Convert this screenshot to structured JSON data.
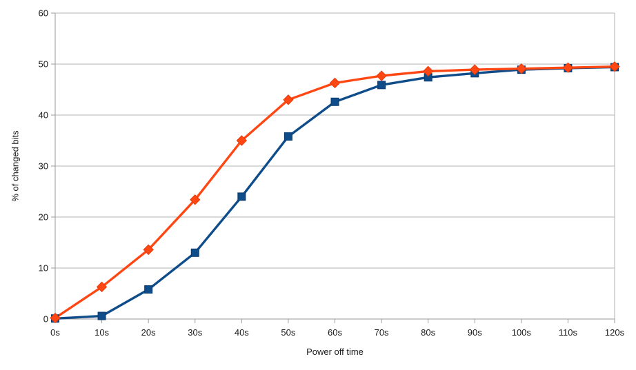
{
  "chart_data": {
    "type": "line",
    "title": "",
    "xlabel": "Power off time",
    "ylabel": "% of changed bits",
    "categories": [
      "0s",
      "10s",
      "20s",
      "30s",
      "40s",
      "50s",
      "60s",
      "70s",
      "80s",
      "90s",
      "100s",
      "110s",
      "120s"
    ],
    "x_numeric": [
      0,
      10,
      20,
      30,
      40,
      50,
      60,
      70,
      80,
      90,
      100,
      110,
      120
    ],
    "yticks": [
      0,
      10,
      20,
      30,
      40,
      50,
      60
    ],
    "ylim": [
      0,
      60
    ],
    "grid": "horizontal",
    "legend": "none",
    "series": [
      {
        "name": "blue-squares",
        "marker": "square",
        "color": "#0e4c8a",
        "marker_stroke": "#0a3a6e",
        "values": [
          0.1,
          0.6,
          5.8,
          13.0,
          24.0,
          35.8,
          42.6,
          45.9,
          47.4,
          48.2,
          48.9,
          49.2,
          49.4
        ]
      },
      {
        "name": "orange-diamonds",
        "marker": "diamond",
        "color": "#ff4713",
        "marker_stroke": "#e63c0c",
        "values": [
          0.2,
          6.3,
          13.6,
          23.4,
          35.0,
          43.0,
          46.3,
          47.7,
          48.6,
          48.9,
          49.1,
          49.3,
          49.5
        ]
      }
    ],
    "colors": {
      "grid": "#b3b3b3",
      "axis": "#9a9a9a",
      "text": "#1a1a1a",
      "background": "#ffffff"
    }
  }
}
